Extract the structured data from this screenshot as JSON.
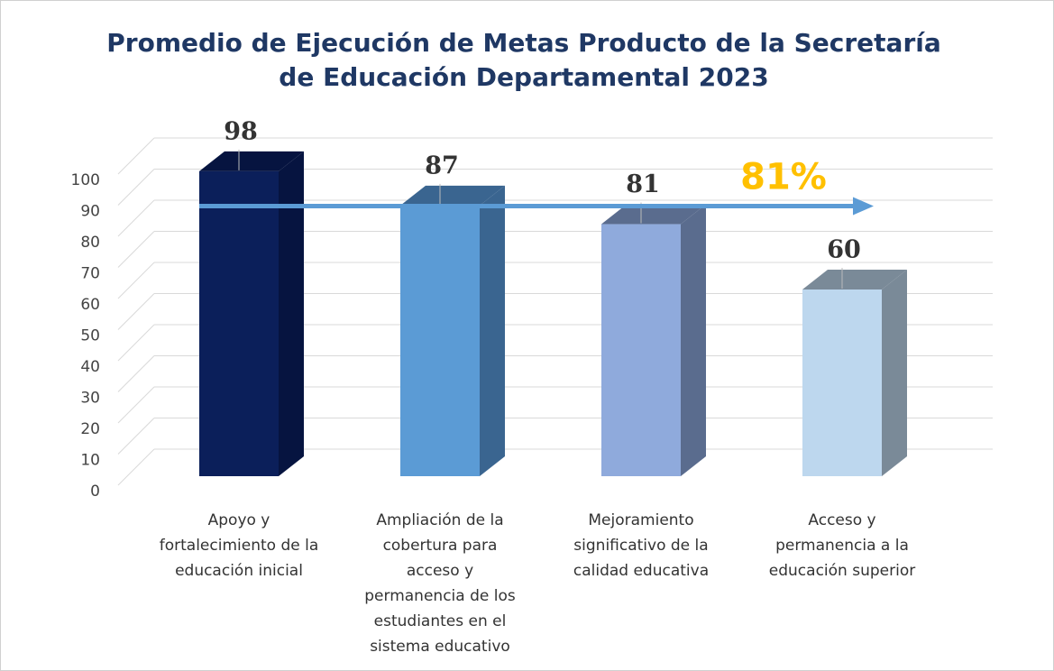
{
  "chart_data": {
    "type": "bar3d",
    "title": "Promedio de Ejecución de Metas Producto de la Secretaría de Educación Departamental 2023",
    "categories": [
      "Apoyo y fortalecimiento de la educación inicial",
      "Ampliación de la cobertura para acceso y permanencia de los estudiantes en el sistema educativo",
      "Mejoramiento significativo de la calidad educativa",
      "Acceso y permanencia a la educación superior"
    ],
    "values": [
      98,
      87,
      81,
      60
    ],
    "colors": [
      "#0b1f5a",
      "#5b9bd5",
      "#8faadc",
      "#bdd7ee"
    ],
    "side_colors": [
      "#061440",
      "#3a6590",
      "#5a6c8e",
      "#7a8a98"
    ],
    "ylim": [
      0,
      100
    ],
    "yticks": [
      0,
      10,
      20,
      30,
      40,
      50,
      60,
      70,
      80,
      90,
      100
    ],
    "grid": true,
    "average": {
      "value": 81,
      "label": "81%"
    }
  }
}
